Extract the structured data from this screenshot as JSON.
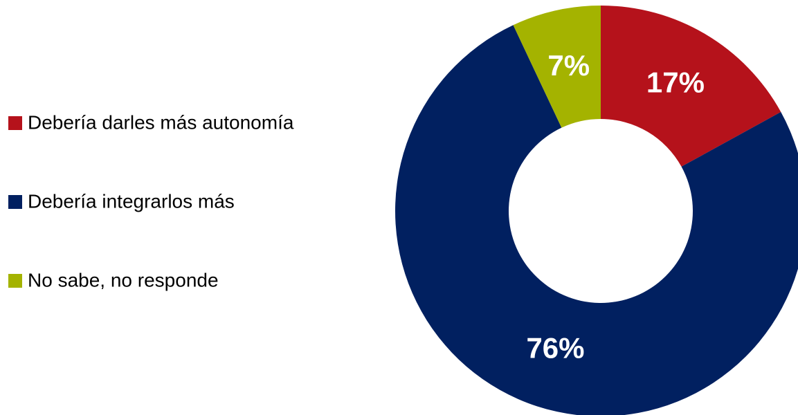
{
  "chart_data": {
    "type": "donut",
    "categories": [
      "Debería darles más autonomía",
      "Debería integrarlos más",
      "No sabe, no responde"
    ],
    "values": [
      17,
      76,
      7
    ],
    "value_labels": [
      "17%",
      "76%",
      "7%"
    ],
    "colors": [
      "#b5121b",
      "#012060",
      "#a4b300"
    ],
    "legend": "left"
  }
}
